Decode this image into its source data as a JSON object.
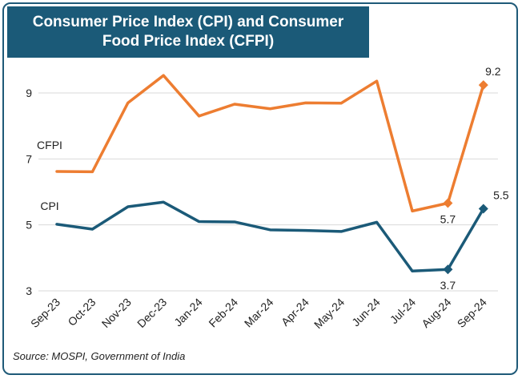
{
  "chart_data": {
    "type": "line",
    "title_line1": "Consumer Price Index (CPI) and Consumer",
    "title_line2": "Food Price Index (CFPI)",
    "categories": [
      "Sep-23",
      "Oct-23",
      "Nov-23",
      "Dec-23",
      "Jan-24",
      "Feb-24",
      "Mar-24",
      "Apr-24",
      "May-24",
      "Jun-24",
      "Jul-24",
      "Aug-24",
      "Sep-24"
    ],
    "ylim": [
      3,
      10
    ],
    "yticks": [
      "3",
      "5",
      "7",
      "9"
    ],
    "grid": true,
    "series": [
      {
        "name": "CFPI",
        "color": "#ed7d31",
        "values": [
          6.62,
          6.61,
          8.7,
          9.53,
          8.3,
          8.66,
          8.52,
          8.7,
          8.69,
          9.36,
          5.42,
          5.66,
          9.24
        ]
      },
      {
        "name": "CPI",
        "color": "#1b5a78",
        "values": [
          5.02,
          4.87,
          5.55,
          5.69,
          5.1,
          5.09,
          4.85,
          4.83,
          4.8,
          5.08,
          3.6,
          3.65,
          5.49
        ]
      }
    ],
    "annotations": [
      {
        "series": 0,
        "index": 11,
        "text": "5.7",
        "pos": "below"
      },
      {
        "series": 0,
        "index": 12,
        "text": "9.2",
        "pos": "above"
      },
      {
        "series": 1,
        "index": 11,
        "text": "3.7",
        "pos": "below"
      },
      {
        "series": 1,
        "index": 12,
        "text": "5.5",
        "pos": "above-right"
      }
    ]
  },
  "source": "Source: MOSPI, Government of India"
}
